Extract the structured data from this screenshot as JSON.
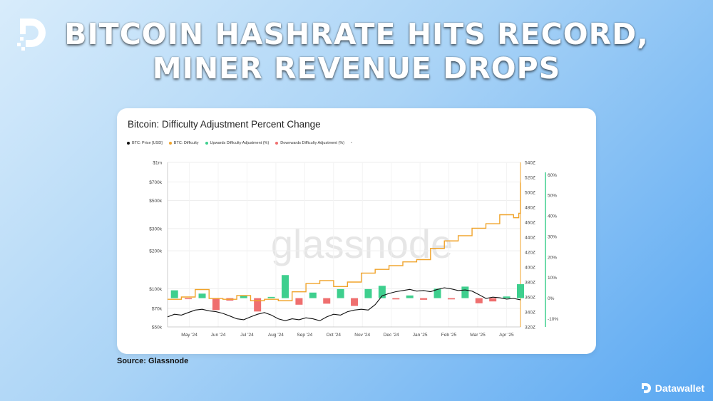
{
  "header": {
    "title_line1": "BITCOIN HASHRATE HITS RECORD,",
    "title_line2": "MINER REVENUE DROPS"
  },
  "source": "Source: Glassnode",
  "brand": {
    "name": "Datawallet"
  },
  "watermark": "glassnode",
  "colors": {
    "price": "#111111",
    "difficulty": "#f0a32a",
    "up": "#3ecf8e",
    "down": "#ef6f6f",
    "accent_axis": "#3ecf8e"
  },
  "chart_data": {
    "type": "line",
    "title": "Bitcoin: Difficulty Adjustment Percent Change",
    "legend": [
      {
        "label": "BTC: Price [USD]",
        "color": "#111111"
      },
      {
        "label": "BTC: Difficulty",
        "color": "#f0a32a"
      },
      {
        "label": "Upwards Difficulty Adjustment (%)",
        "color": "#3ecf8e"
      },
      {
        "label": "Downwards Difficulty Adjustment (%)",
        "color": "#ef6f6f"
      }
    ],
    "legend_extra": "•",
    "x_ticks": [
      "May '24",
      "Jun '24",
      "Jul '24",
      "Aug '24",
      "Sep '24",
      "Oct '24",
      "Nov '24",
      "Dec '24",
      "Jan '25",
      "Feb '25",
      "Mar '25",
      "Apr '25"
    ],
    "x_range": [
      2024.27,
      2025.29
    ],
    "y_left": {
      "scale": "log",
      "range": [
        50000,
        1000000
      ],
      "ticks": [
        {
          "v": 1000000,
          "label": "$1m"
        },
        {
          "v": 700000,
          "label": "$700k"
        },
        {
          "v": 500000,
          "label": "$500k"
        },
        {
          "v": 300000,
          "label": "$300k"
        },
        {
          "v": 200000,
          "label": "$200k"
        },
        {
          "v": 100000,
          "label": "$100k"
        },
        {
          "v": 70000,
          "label": "$70k"
        },
        {
          "v": 50000,
          "label": "$50k"
        }
      ]
    },
    "y_mid": {
      "range": [
        320,
        540
      ],
      "ticks": [
        {
          "v": 540,
          "label": "540Z"
        },
        {
          "v": 520,
          "label": "520Z"
        },
        {
          "v": 500,
          "label": "500Z"
        },
        {
          "v": 480,
          "label": "480Z"
        },
        {
          "v": 460,
          "label": "460Z"
        },
        {
          "v": 440,
          "label": "440Z"
        },
        {
          "v": 420,
          "label": "420Z"
        },
        {
          "v": 400,
          "label": "400Z"
        },
        {
          "v": 380,
          "label": "380Z"
        },
        {
          "v": 360,
          "label": "360Z"
        },
        {
          "v": 340,
          "label": "340Z"
        },
        {
          "v": 320,
          "label": "320Z"
        }
      ]
    },
    "y_right": {
      "range": [
        -14,
        66
      ],
      "ticks": [
        {
          "v": 60,
          "label": "60%"
        },
        {
          "v": 50,
          "label": "50%"
        },
        {
          "v": 40,
          "label": "40%"
        },
        {
          "v": 30,
          "label": "30%"
        },
        {
          "v": 20,
          "label": "20%"
        },
        {
          "v": 10,
          "label": "10%"
        },
        {
          "v": 0,
          "label": "0%"
        },
        {
          "v": -10,
          "label": "-10%"
        }
      ]
    },
    "price": {
      "name": "BTC: Price [USD]",
      "x": [
        2024.27,
        2024.29,
        2024.31,
        2024.33,
        2024.35,
        2024.37,
        2024.39,
        2024.41,
        2024.43,
        2024.45,
        2024.47,
        2024.49,
        2024.51,
        2024.53,
        2024.55,
        2024.57,
        2024.59,
        2024.61,
        2024.63,
        2024.65,
        2024.67,
        2024.69,
        2024.71,
        2024.73,
        2024.75,
        2024.77,
        2024.79,
        2024.81,
        2024.83,
        2024.85,
        2024.87,
        2024.89,
        2024.91,
        2024.93,
        2024.95,
        2024.97,
        2024.99,
        2025.01,
        2025.03,
        2025.05,
        2025.07,
        2025.09,
        2025.11,
        2025.13,
        2025.15,
        2025.17,
        2025.19,
        2025.21,
        2025.23,
        2025.25,
        2025.27,
        2025.29
      ],
      "y": [
        60000,
        63000,
        62000,
        65000,
        68000,
        69000,
        67000,
        66000,
        64000,
        61000,
        58000,
        57000,
        60000,
        63000,
        65000,
        62000,
        58000,
        56000,
        58000,
        57000,
        59000,
        58000,
        56000,
        60000,
        63000,
        62000,
        66000,
        68000,
        69000,
        68000,
        75000,
        88000,
        92000,
        95000,
        97000,
        99000,
        96000,
        97000,
        95000,
        99000,
        102000,
        100000,
        97000,
        98000,
        96000,
        90000,
        84000,
        86000,
        85000,
        83000,
        84000,
        82000
      ]
    },
    "difficulty": {
      "name": "BTC: Difficulty",
      "x": [
        2024.27,
        2024.31,
        2024.35,
        2024.39,
        2024.43,
        2024.47,
        2024.51,
        2024.55,
        2024.59,
        2024.63,
        2024.67,
        2024.71,
        2024.75,
        2024.79,
        2024.83,
        2024.87,
        2024.91,
        2024.95,
        2024.99,
        2025.03,
        2025.07,
        2025.11,
        2025.15,
        2025.19,
        2025.23,
        2025.27,
        2025.285,
        2025.29
      ],
      "y": [
        357,
        360,
        370,
        358,
        357,
        362,
        355,
        357,
        355,
        367,
        378,
        382,
        374,
        380,
        392,
        397,
        402,
        407,
        410,
        425,
        435,
        442,
        452,
        458,
        470,
        466,
        472,
        513
      ]
    },
    "adjustments": {
      "x": [
        2024.29,
        2024.33,
        2024.37,
        2024.41,
        2024.45,
        2024.49,
        2024.53,
        2024.57,
        2024.61,
        2024.65,
        2024.69,
        2024.73,
        2024.77,
        2024.81,
        2024.85,
        2024.89,
        2024.93,
        2024.97,
        2025.01,
        2025.05,
        2025.09,
        2025.13,
        2025.17,
        2025.21,
        2025.25,
        2025.29
      ],
      "values": [
        3.8,
        -0.5,
        2.2,
        -5.8,
        -1.2,
        1.3,
        -6.5,
        0.6,
        11.2,
        -3.2,
        2.7,
        -2.7,
        4.4,
        -3.8,
        4.4,
        6.0,
        -0.6,
        1.3,
        -0.8,
        4.6,
        -0.6,
        5.6,
        -2.5,
        -1.6,
        0.8,
        6.8
      ]
    }
  }
}
